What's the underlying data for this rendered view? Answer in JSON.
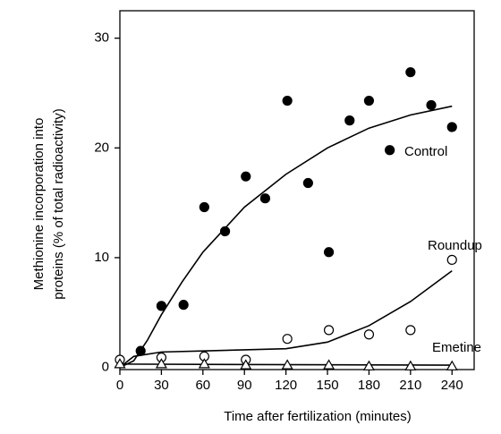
{
  "chart_data": {
    "type": "scatter",
    "xlabel": "Time after fertilization (minutes)",
    "ylabel": [
      "Methionine incorporation into",
      "proteins (% of total radioactivity)"
    ],
    "xlim": [
      0,
      256
    ],
    "ylim": [
      -0.2,
      32.5
    ],
    "xticks": [
      0,
      30,
      60,
      90,
      120,
      150,
      180,
      210,
      240
    ],
    "yticks": [
      0,
      10,
      20,
      30
    ],
    "series": [
      {
        "name": "Control",
        "marker": "filled-circle",
        "color": "#000000",
        "x": [
          15,
          30,
          46,
          61,
          76,
          91,
          105,
          121,
          136,
          151,
          166,
          180,
          195,
          210,
          225,
          240
        ],
        "values": [
          1.5,
          5.6,
          5.7,
          14.6,
          12.4,
          17.4,
          15.4,
          24.3,
          16.8,
          10.5,
          22.5,
          24.3,
          19.8,
          26.9,
          23.9,
          21.9
        ],
        "fit": {
          "x": [
            0,
            10,
            20,
            30,
            45,
            60,
            90,
            120,
            150,
            180,
            210,
            240
          ],
          "values": [
            0,
            0.6,
            2.5,
            4.8,
            7.8,
            10.5,
            14.6,
            17.6,
            20,
            21.8,
            23,
            23.8
          ]
        }
      },
      {
        "name": "Roundup",
        "marker": "open-circle",
        "color": "#000000",
        "x": [
          0,
          30,
          61,
          91,
          121,
          151,
          180,
          210,
          240
        ],
        "values": [
          0.7,
          0.9,
          1.0,
          0.7,
          2.6,
          3.4,
          3.0,
          3.4,
          9.8
        ],
        "fit": {
          "x": [
            0,
            10,
            30,
            60,
            90,
            120,
            150,
            180,
            210,
            240
          ],
          "values": [
            0,
            1.0,
            1.4,
            1.5,
            1.6,
            1.7,
            2.3,
            3.8,
            6.0,
            8.8
          ]
        }
      },
      {
        "name": "Emetine",
        "marker": "triangle",
        "color": "#000000",
        "x": [
          0,
          30,
          61,
          91,
          121,
          151,
          180,
          210,
          240
        ],
        "values": [
          0.3,
          0.3,
          0.3,
          0.2,
          0.2,
          0.2,
          0.1,
          0.1,
          0.1
        ],
        "fit": {
          "x": [
            0,
            240
          ],
          "values": [
            0.3,
            0.2
          ]
        }
      }
    ]
  }
}
